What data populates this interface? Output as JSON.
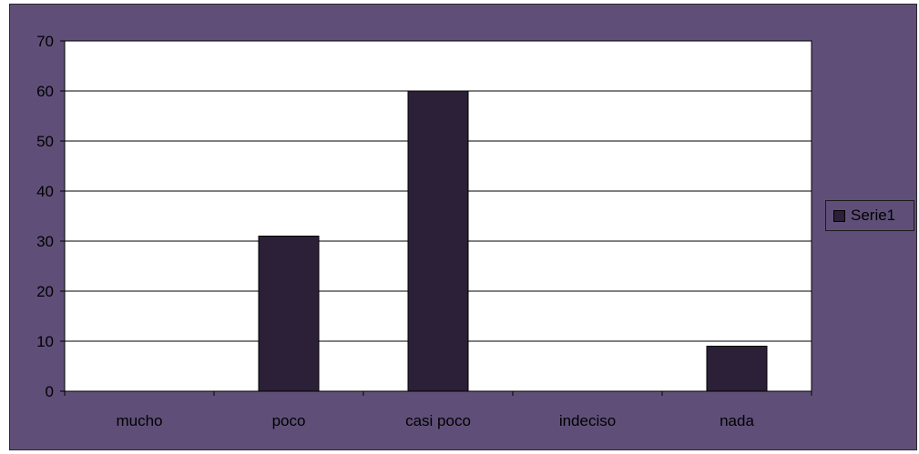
{
  "chart_data": {
    "type": "bar",
    "categories": [
      "mucho",
      "poco",
      "casi poco",
      "indeciso",
      "nada"
    ],
    "series": [
      {
        "name": "Serie1",
        "values": [
          0,
          31,
          60,
          0,
          9
        ]
      }
    ],
    "title": "",
    "xlabel": "",
    "ylabel": "",
    "ylim": [
      0,
      70
    ],
    "yticks": [
      "0",
      "10",
      "20",
      "30",
      "40",
      "50",
      "60",
      "70"
    ],
    "grid": true,
    "legend": "right"
  },
  "colors": {
    "background": "#5f4f78",
    "plot_area": "#ffffff",
    "bar": "#2b2038",
    "gridline": "#000000"
  },
  "legend": {
    "label": "Serie1"
  }
}
